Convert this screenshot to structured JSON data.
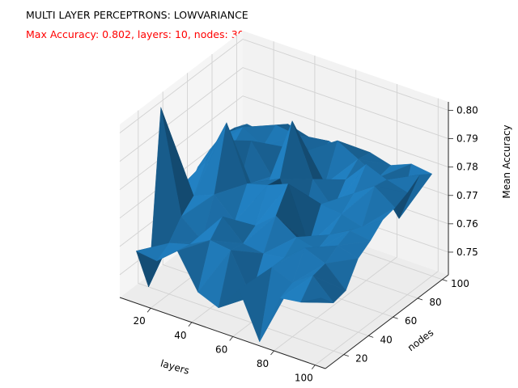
{
  "chart_data": {
    "type": "surface3d",
    "title": "MULTI LAYER PERCEPTRONS: LOWVARIANCE",
    "subtitle": "Max Accuracy: 0.802, layers: 10, nodes: 30",
    "subtitle_color": "#ff0000",
    "surface_color": "#1f77b4",
    "xlabel": "layers",
    "ylabel": "nodes",
    "zlabel": "Mean Accuracy",
    "x_ticks": [
      "20",
      "40",
      "60",
      "80",
      "100"
    ],
    "y_ticks": [
      "20",
      "40",
      "60",
      "80",
      "100"
    ],
    "z_ticks": [
      "0.75",
      "0.76",
      "0.77",
      "0.78",
      "0.79",
      "0.80"
    ],
    "xlim": [
      5,
      105
    ],
    "ylim": [
      5,
      105
    ],
    "zlim": [
      0.742,
      0.803
    ],
    "grid": true,
    "x": [
      10,
      20,
      30,
      40,
      50,
      60,
      70,
      80,
      90,
      100
    ],
    "y": [
      10,
      20,
      30,
      40,
      50,
      60,
      70,
      80,
      90,
      100
    ],
    "z": [
      [
        0.758,
        0.742,
        0.802,
        0.768,
        0.764,
        0.771,
        0.774,
        0.776,
        0.775,
        0.773
      ],
      [
        0.757,
        0.76,
        0.766,
        0.77,
        0.779,
        0.783,
        0.776,
        0.781,
        0.77,
        0.772
      ],
      [
        0.763,
        0.762,
        0.76,
        0.773,
        0.795,
        0.769,
        0.782,
        0.777,
        0.781,
        0.778
      ],
      [
        0.751,
        0.766,
        0.771,
        0.766,
        0.776,
        0.765,
        0.772,
        0.779,
        0.78,
        0.776
      ],
      [
        0.748,
        0.765,
        0.764,
        0.767,
        0.778,
        0.777,
        0.794,
        0.78,
        0.774,
        0.777
      ],
      [
        0.757,
        0.751,
        0.763,
        0.773,
        0.781,
        0.76,
        0.776,
        0.771,
        0.783,
        0.775
      ],
      [
        0.741,
        0.764,
        0.764,
        0.768,
        0.762,
        0.773,
        0.768,
        0.775,
        0.779,
        0.778
      ],
      [
        0.759,
        0.761,
        0.77,
        0.766,
        0.768,
        0.772,
        0.776,
        0.783,
        0.775,
        0.776
      ],
      [
        0.76,
        0.766,
        0.767,
        0.77,
        0.772,
        0.77,
        0.781,
        0.78,
        0.763,
        0.779
      ],
      [
        0.764,
        0.759,
        0.76,
        0.768,
        0.771,
        0.775,
        0.776,
        0.778,
        0.781,
        0.778
      ]
    ]
  }
}
